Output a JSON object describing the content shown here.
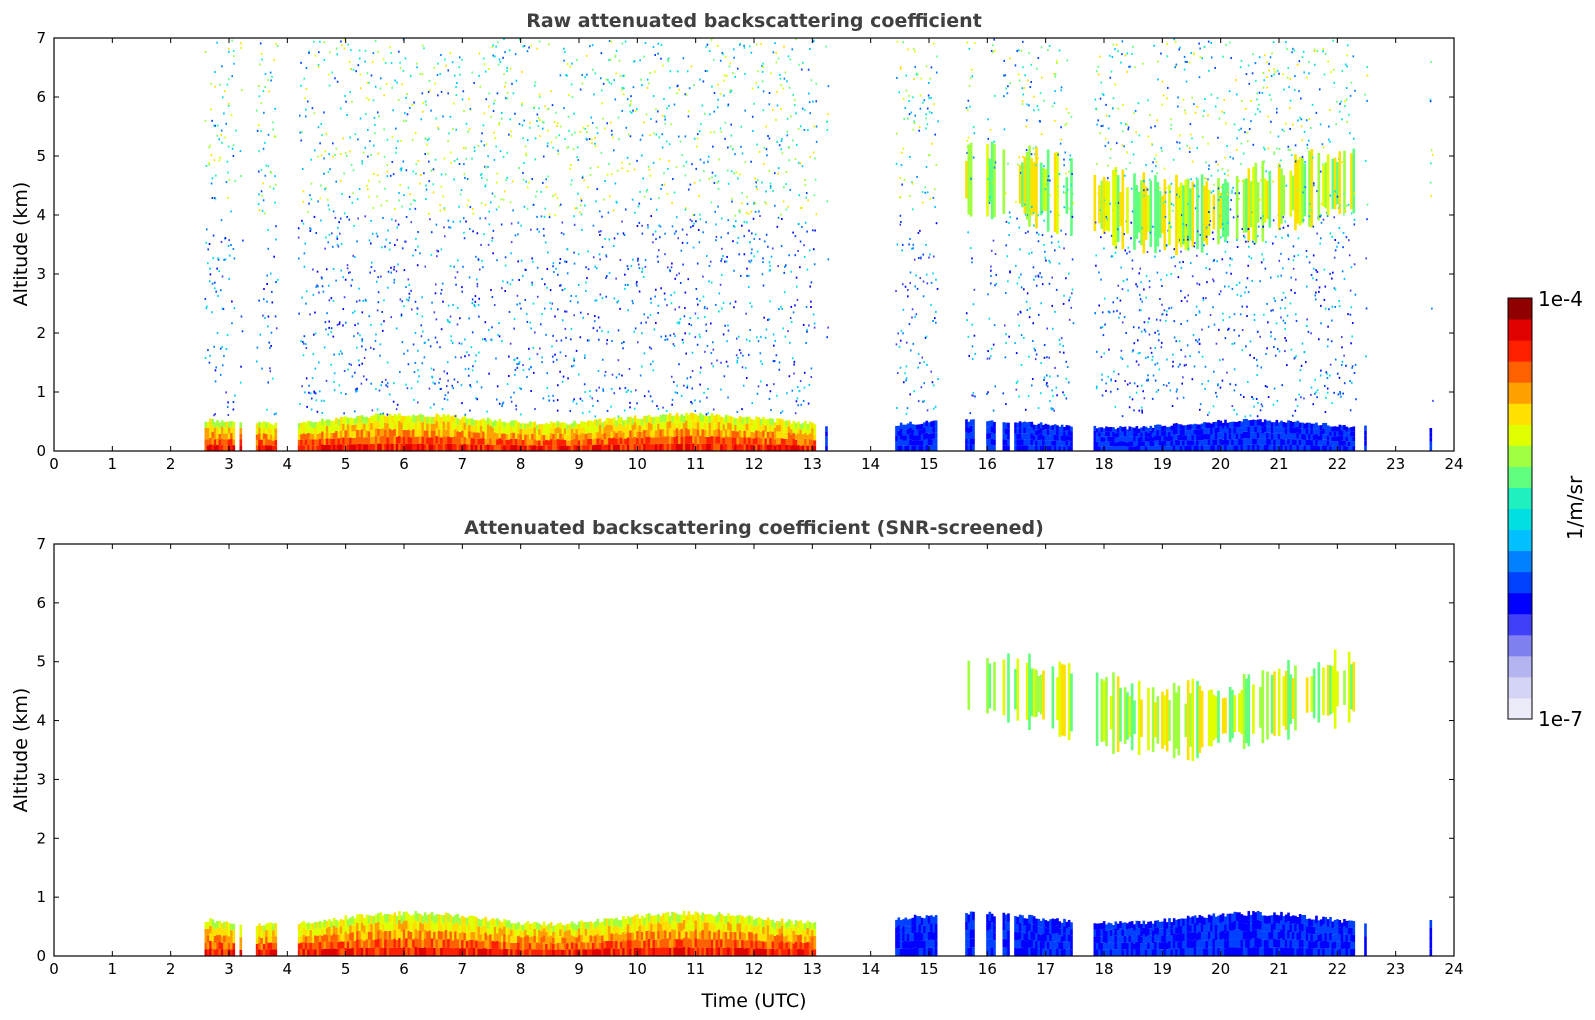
{
  "chart_data": [
    {
      "type": "heatmap",
      "title": "Raw attenuated backscattering coefficient",
      "xlabel": "",
      "ylabel": "Altitude (km)",
      "xlim": [
        0,
        24
      ],
      "ylim": [
        0,
        7
      ],
      "xticks": [
        "0",
        "1",
        "2",
        "3",
        "4",
        "5",
        "6",
        "7",
        "8",
        "9",
        "10",
        "11",
        "12",
        "13",
        "14",
        "15",
        "16",
        "17",
        "18",
        "19",
        "20",
        "21",
        "22",
        "23",
        "24"
      ],
      "yticks": [
        "0",
        "1",
        "2",
        "3",
        "4",
        "5",
        "6",
        "7"
      ],
      "data_segments_utc": [
        [
          2.58,
          3.1
        ],
        [
          3.15,
          3.2
        ],
        [
          3.45,
          3.8
        ],
        [
          4.15,
          13.05
        ],
        [
          13.1,
          13.13
        ],
        [
          13.2,
          13.23
        ],
        [
          13.3,
          13.33
        ],
        [
          14.38,
          15.1
        ],
        [
          15.6,
          15.75
        ],
        [
          15.95,
          16.1
        ],
        [
          16.25,
          16.35
        ],
        [
          16.45,
          17.45
        ],
        [
          17.78,
          22.28
        ],
        [
          22.42,
          22.47
        ],
        [
          23.57,
          23.61
        ]
      ],
      "layers": [
        {
          "name": "boundary layer aerosol (strong)",
          "x_range": [
            2.58,
            13.05
          ],
          "top_km": 0.6,
          "level": "high"
        },
        {
          "name": "elevated aerosol layer",
          "x_range": [
            15.6,
            22.3
          ],
          "alt_km": [
            3.6,
            5.0
          ],
          "level": "medium"
        },
        {
          "name": "near-surface signal (weak)",
          "x_range": [
            13.05,
            23.61
          ],
          "top_km": 0.5,
          "level": "low"
        }
      ],
      "noise_above_layer": true
    },
    {
      "type": "heatmap",
      "title": "Attenuated backscattering coefficient (SNR-screened)",
      "xlabel": "Time (UTC)",
      "ylabel": "Altitude (km)",
      "xlim": [
        0,
        24
      ],
      "ylim": [
        0,
        7
      ],
      "xticks": [
        "0",
        "1",
        "2",
        "3",
        "4",
        "5",
        "6",
        "7",
        "8",
        "9",
        "10",
        "11",
        "12",
        "13",
        "14",
        "15",
        "16",
        "17",
        "18",
        "19",
        "20",
        "21",
        "22",
        "23",
        "24"
      ],
      "yticks": [
        "0",
        "1",
        "2",
        "3",
        "4",
        "5",
        "6",
        "7"
      ],
      "layers": [
        {
          "name": "boundary layer aerosol",
          "x_range": [
            2.58,
            13.05
          ],
          "top_km": 0.7,
          "level": "high"
        },
        {
          "name": "elevated aerosol layer",
          "x_range": [
            15.6,
            22.3
          ],
          "alt_km": [
            3.6,
            5.0
          ],
          "level": "medium"
        },
        {
          "name": "near-surface signal",
          "x_range": [
            14.38,
            23.61
          ],
          "top_km": 0.7,
          "level": "low"
        }
      ],
      "noise_above_layer": false
    }
  ],
  "colorbar": {
    "label": "1/m/sr",
    "max_label": "1e-4",
    "min_label": "1e-7",
    "scale": "log",
    "range": [
      1e-07,
      0.0001
    ],
    "colormap": [
      "#ececf8",
      "#d4d4f4",
      "#b4b4f0",
      "#8080f0",
      "#4040f8",
      "#0000ff",
      "#0040ff",
      "#0080ff",
      "#00c0ff",
      "#00e0e0",
      "#20f0c0",
      "#60ff80",
      "#a0ff40",
      "#e0ff00",
      "#ffe000",
      "#ffa000",
      "#ff6000",
      "#ff2000",
      "#e00000",
      "#900000"
    ]
  }
}
